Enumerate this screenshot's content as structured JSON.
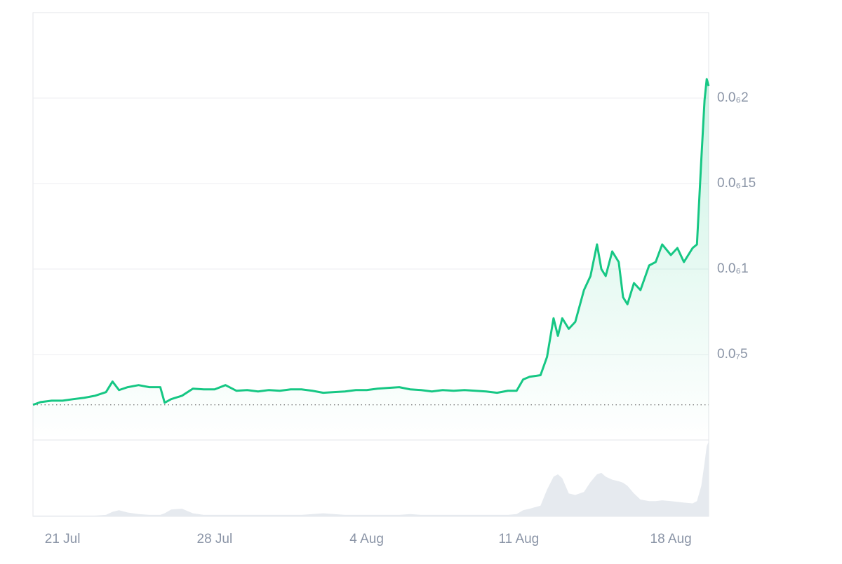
{
  "chart_data": {
    "type": "line",
    "color": "#16c784",
    "x": [
      200.64,
      201,
      201.5,
      202,
      202.5,
      203,
      203.5,
      204,
      204.3,
      204.6,
      205,
      205.5,
      206,
      206.5,
      206.7,
      207,
      207.5,
      208,
      208.5,
      209,
      209.5,
      210,
      210.5,
      211,
      211.5,
      212,
      212.5,
      213,
      213.5,
      214,
      214.5,
      215,
      215.5,
      216,
      216.5,
      217,
      217.5,
      218,
      218.5,
      219,
      219.5,
      220,
      220.5,
      221,
      221.5,
      222,
      222.5,
      222.9,
      223.2,
      223.5,
      224,
      224.3,
      224.6,
      224.8,
      225,
      225.3,
      225.6,
      226,
      226.3,
      226.6,
      226.8,
      227,
      227.3,
      227.6,
      227.8,
      228,
      228.3,
      228.6,
      229,
      229.3,
      229.6,
      230,
      230.3,
      230.6,
      231,
      231.2,
      231.4,
      231.55,
      231.65,
      231.74
    ],
    "values": [
      2.06e-08,
      2.22e-08,
      2.3e-08,
      2.3e-08,
      2.39e-08,
      2.47e-08,
      2.59e-08,
      2.8e-08,
      3.42e-08,
      2.92e-08,
      3.09e-08,
      3.21e-08,
      3.09e-08,
      3.09e-08,
      2.18e-08,
      2.39e-08,
      2.59e-08,
      3e-08,
      2.96e-08,
      2.96e-08,
      3.21e-08,
      2.88e-08,
      2.92e-08,
      2.84e-08,
      2.92e-08,
      2.88e-08,
      2.96e-08,
      2.96e-08,
      2.88e-08,
      2.76e-08,
      2.8e-08,
      2.84e-08,
      2.92e-08,
      2.92e-08,
      3e-08,
      3.05e-08,
      3.09e-08,
      2.96e-08,
      2.92e-08,
      2.84e-08,
      2.92e-08,
      2.88e-08,
      2.92e-08,
      2.88e-08,
      2.84e-08,
      2.76e-08,
      2.88e-08,
      2.88e-08,
      3.54e-08,
      3.7e-08,
      3.79e-08,
      4.86e-08,
      7.12e-08,
      6.09e-08,
      7.12e-08,
      6.5e-08,
      6.91e-08,
      8.77e-08,
      9.59e-08,
      1.144e-07,
      1e-07,
      9.59e-08,
      1.103e-07,
      1.041e-07,
      8.35e-08,
      7.94e-08,
      9.18e-08,
      8.77e-08,
      1.021e-07,
      1.041e-07,
      1.144e-07,
      1.082e-07,
      1.123e-07,
      1.041e-07,
      1.123e-07,
      1.144e-07,
      1.638e-07,
      1.988e-07,
      2.111e-07,
      2.07e-07
    ],
    "ylim": [
      0,
      2.5e-07
    ],
    "yticks": [
      {
        "value": 2e-07,
        "label": "0.0₆2"
      },
      {
        "value": 1.5e-07,
        "label": "0.0₆15"
      },
      {
        "value": 1e-07,
        "label": "0.0₆1"
      },
      {
        "value": 5e-08,
        "label": "0.0₇5"
      }
    ],
    "xlim": [
      200.64,
      231.74
    ],
    "xticks": [
      {
        "value": 202,
        "label": "21 Jul"
      },
      {
        "value": 209,
        "label": "28 Jul"
      },
      {
        "value": 216,
        "label": "4 Aug"
      },
      {
        "value": 223,
        "label": "11 Aug"
      },
      {
        "value": 230,
        "label": "18 Aug"
      }
    ],
    "grid": true,
    "volume": {
      "color": "#e6eaef",
      "ylim": [
        0,
        100
      ],
      "values": [
        1,
        1,
        1,
        1,
        1,
        1,
        1,
        2,
        6,
        8,
        5,
        3,
        2,
        2,
        4,
        9,
        10,
        4,
        2,
        2,
        2,
        2,
        2,
        2,
        2,
        2,
        2,
        2,
        3,
        4,
        3,
        2,
        2,
        2,
        2,
        2,
        2,
        3,
        2,
        2,
        2,
        2,
        2,
        2,
        2,
        2,
        2,
        3,
        8,
        10,
        14,
        35,
        52,
        55,
        50,
        30,
        28,
        32,
        45,
        55,
        57,
        52,
        48,
        46,
        44,
        40,
        30,
        22,
        20,
        20,
        21,
        20,
        19,
        18,
        17,
        20,
        40,
        70,
        92,
        98
      ]
    }
  }
}
